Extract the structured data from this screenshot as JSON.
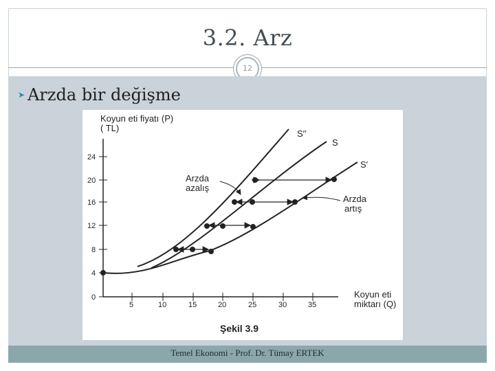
{
  "slide": {
    "title": "3.2. Arz",
    "page_number": "12",
    "bullet": "Arzda bir değişme",
    "footer": "Temel Ekonomi - Prof. Dr. Tümay ERTEK"
  },
  "colors": {
    "accent": "#2f8aa5",
    "content_bg": "#c9d3d9",
    "footer_bg": "#8aa7ac"
  },
  "figure": {
    "y_axis_title_line1": "Koyun eti fiyatı (P)",
    "y_axis_title_line2": "( TL)",
    "x_axis_title_line1": "Koyun eti",
    "x_axis_title_line2": "miktarı (Q)",
    "caption": "Şekil 3.9",
    "x_ticks": [
      "5",
      "10",
      "15",
      "20",
      "25",
      "30",
      "35"
    ],
    "y_ticks": [
      "0",
      "4",
      "8",
      "12",
      "16",
      "20",
      "24"
    ],
    "curve_labels": {
      "s2": "S′′",
      "s": "S",
      "s1": "S′"
    },
    "annotation_decrease": [
      "Arzda",
      "azalış"
    ],
    "annotation_increase": [
      "Arzda",
      "artış"
    ]
  }
}
